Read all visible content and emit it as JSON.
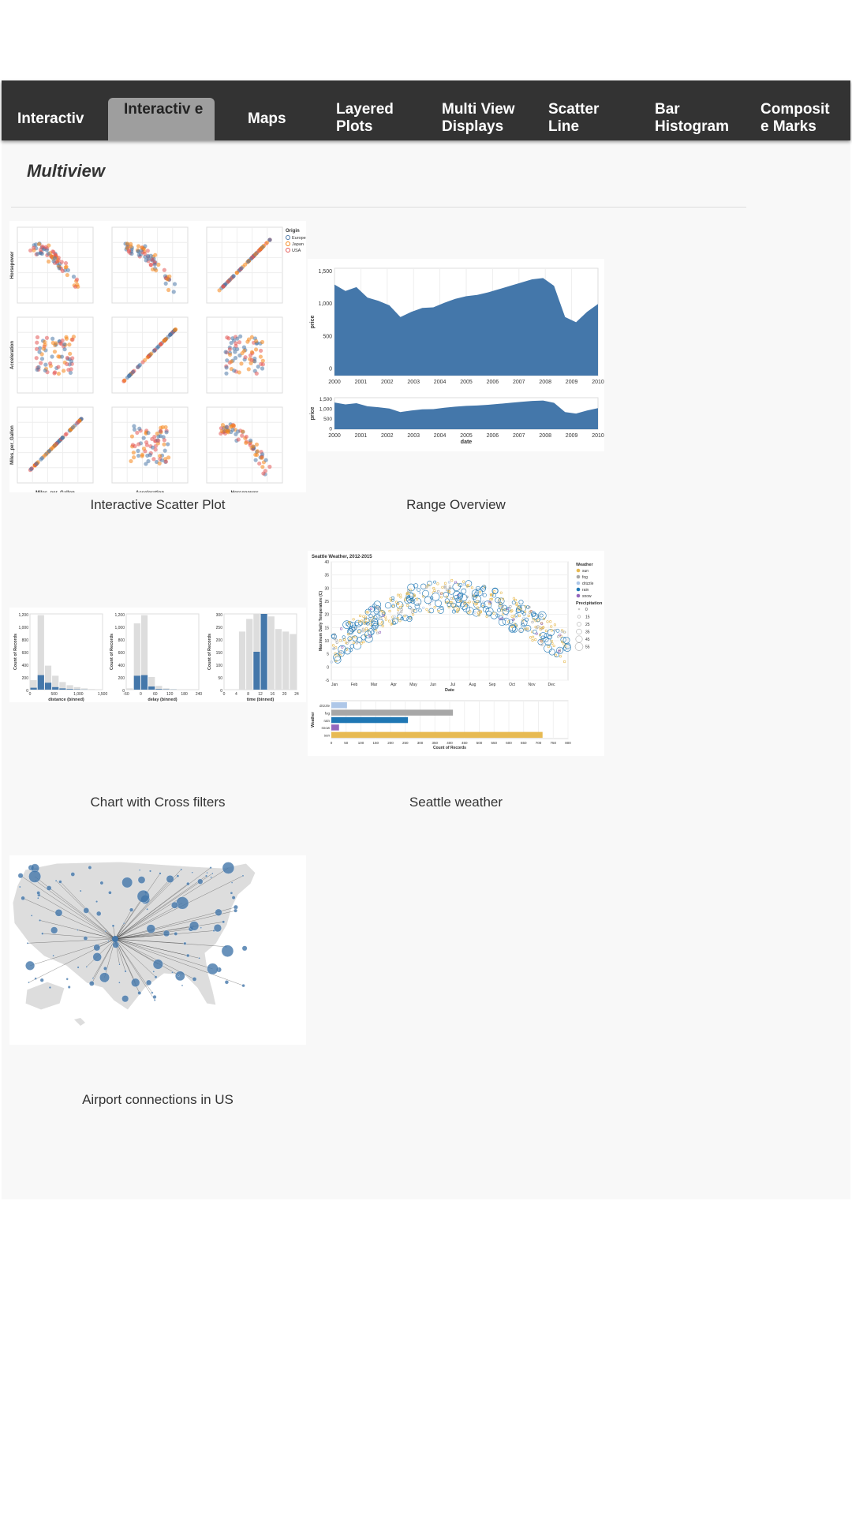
{
  "nav": {
    "tabs": [
      {
        "label": "Interactiv",
        "active": false
      },
      {
        "label": "Interactiv e",
        "active": true
      },
      {
        "label": "Maps",
        "active": false
      },
      {
        "label": "Layered Plots",
        "active": false
      },
      {
        "label": "Multi View Displays",
        "active": false
      },
      {
        "label": "Scatter Line",
        "active": false
      },
      {
        "label": "Bar Histogram",
        "active": false
      },
      {
        "label": "Composit e Marks",
        "active": false
      }
    ]
  },
  "section": {
    "title": "Multiview"
  },
  "cards": [
    {
      "caption": "Interactive Scatter Plot"
    },
    {
      "caption": "Range Overview"
    },
    {
      "caption": "Chart with Cross filters"
    },
    {
      "caption": "Seattle weather"
    },
    {
      "caption": "Airport connections in US"
    }
  ],
  "scatter": {
    "xlabels": [
      "Miles_per_Gallon",
      "Acceleration",
      "Horsepower"
    ],
    "ylabels": [
      "Horsepower",
      "Acceleration",
      "Miles_per_Gallon"
    ],
    "legend_title": "Origin",
    "legend": [
      "Europe",
      "Japan",
      "USA"
    ],
    "colors": [
      "#4c78a8",
      "#f58518",
      "#e45756"
    ]
  },
  "range": {
    "ylabel": "price",
    "xlabel": "date",
    "yticks_main": [
      "1,500",
      "1,000",
      "500",
      "0"
    ],
    "yticks_overview": [
      "1,500",
      "1,000",
      "500",
      "0"
    ],
    "xticks": [
      "2000",
      "2001",
      "2002",
      "2003",
      "2004",
      "2005",
      "2006",
      "2007",
      "2008",
      "2009",
      "2010"
    ],
    "color": "#4477aa"
  },
  "crossfilter": {
    "ylabel": "Count of Records",
    "panels": [
      {
        "xlabel": "distance (binned)",
        "xticks": [
          "0",
          "500",
          "1,000",
          "1,500"
        ],
        "yticks": [
          "1,200",
          "1,000",
          "800",
          "600",
          "400",
          "200",
          "0"
        ]
      },
      {
        "xlabel": "delay (binned)",
        "xticks": [
          "-60",
          "0",
          "60",
          "120",
          "180",
          "240"
        ],
        "yticks": [
          "1,200",
          "1,000",
          "800",
          "600",
          "400",
          "200",
          "0"
        ]
      },
      {
        "xlabel": "time (binned)",
        "xticks": [
          "0",
          "4",
          "8",
          "12",
          "16",
          "20",
          "24"
        ],
        "yticks": [
          "300",
          "250",
          "200",
          "150",
          "100",
          "50",
          "0"
        ]
      }
    ]
  },
  "weather": {
    "title": "Seattle Weather, 2012-2015",
    "scatter_ylabel": "Maximum Daily Temperature (C)",
    "scatter_xlabel": "Date",
    "months": [
      "Jan",
      "Feb",
      "Mar",
      "Apr",
      "May",
      "Jun",
      "Jul",
      "Aug",
      "Sep",
      "Oct",
      "Nov",
      "Dec"
    ],
    "legend_title": "Weather",
    "types": [
      "sun",
      "fog",
      "drizzle",
      "rain",
      "snow"
    ],
    "colors": [
      "#e7ba52",
      "#a7a7a7",
      "#aec7e8",
      "#1f77b4",
      "#9467bd"
    ],
    "precip_title": "Precipitation",
    "precip_values": [
      "0",
      "15",
      "25",
      "35",
      "45",
      "55"
    ],
    "bar_ylabel": "Weather",
    "bar_xlabel": "Count of Records",
    "bar_categories": [
      "drizzle",
      "fog",
      "rain",
      "snow",
      "sun"
    ],
    "bar_values": [
      53,
      411,
      259,
      26,
      714
    ],
    "bar_xticks": [
      "0",
      "50",
      "100",
      "150",
      "200",
      "250",
      "300",
      "350",
      "400",
      "450",
      "500",
      "550",
      "600",
      "650",
      "700",
      "750",
      "800"
    ]
  }
}
